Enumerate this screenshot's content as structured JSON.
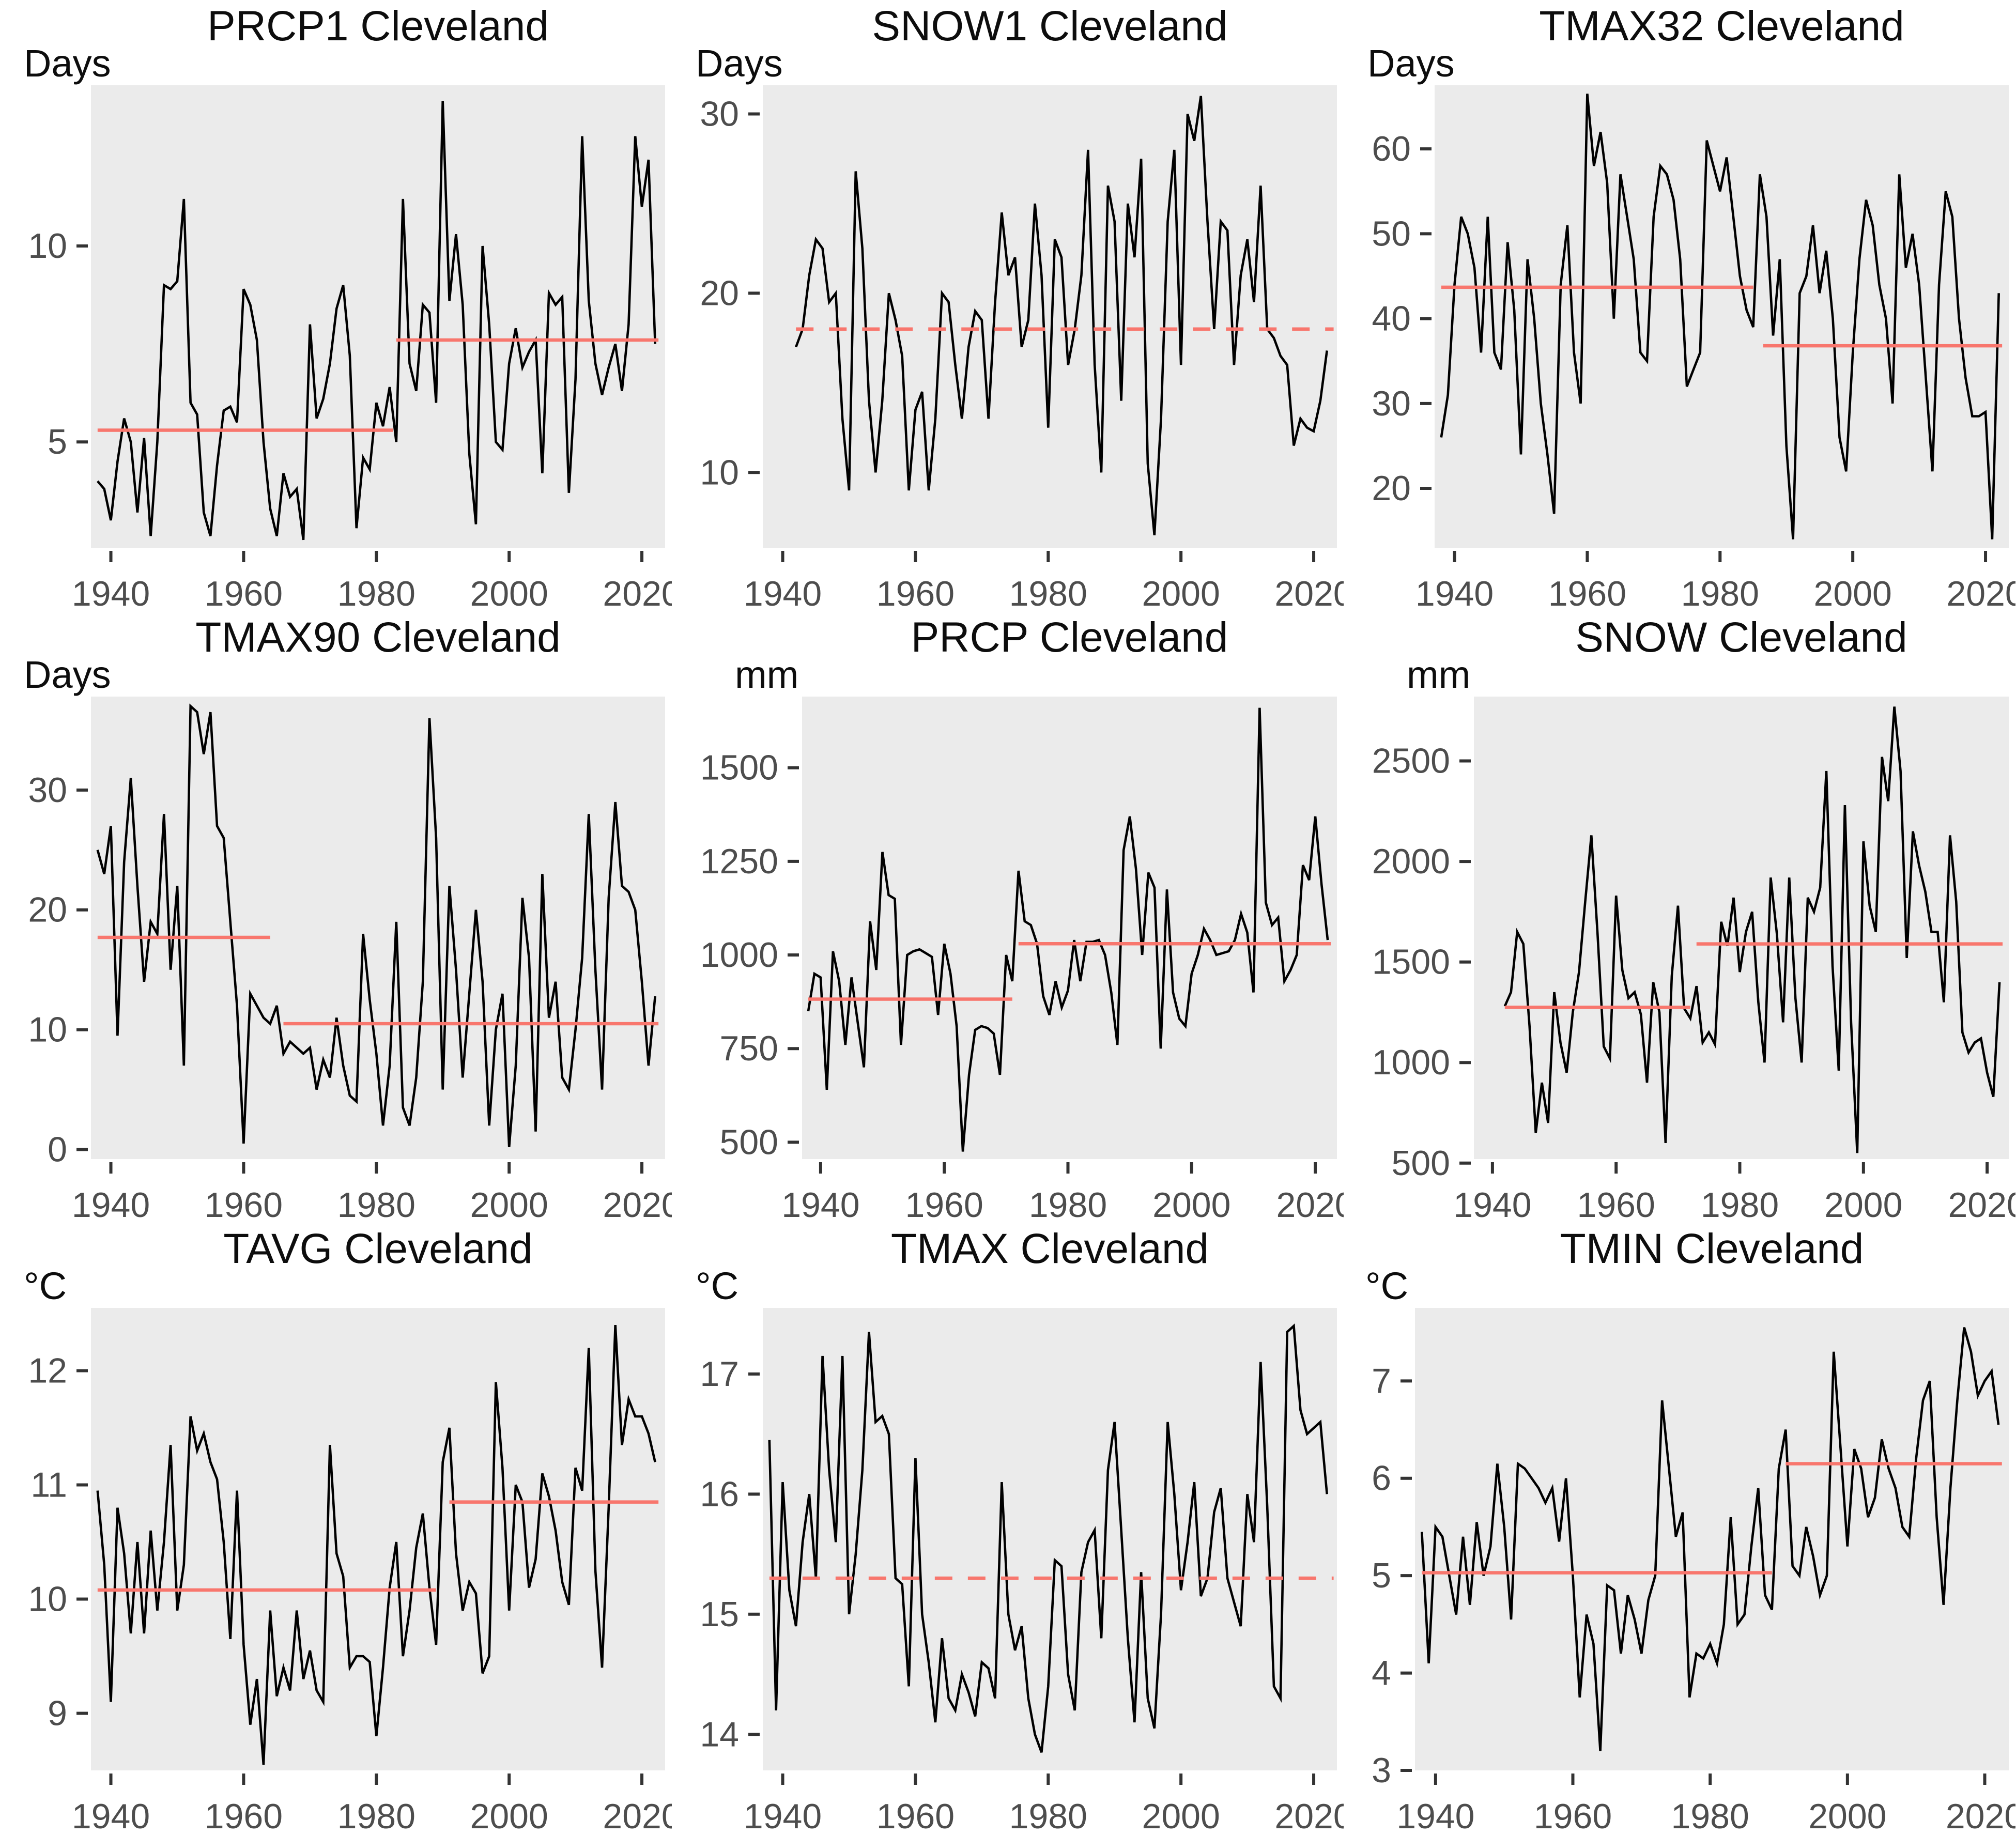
{
  "figure_title": "Cleveland climate indicator time series with changepoint mean segments",
  "style": {
    "page_bg": "#ffffff",
    "panel_bg": "#ebebeb",
    "series_color": "#000000",
    "mean_line_color": "#f8766d",
    "axis_text_color": "#4d4d4d",
    "tick_mark_color": "#333333",
    "title_color": "#0d0d0d"
  },
  "chart_data": [
    {
      "type": "line",
      "title": "PRCP1 Cleveland",
      "ylabel": "Days",
      "x_ticks": [
        1940,
        1960,
        1980,
        2000,
        2020
      ],
      "xlim": [
        1937,
        2023.5
      ],
      "y_ticks": [
        5,
        10
      ],
      "ylim": [
        2.3,
        14.1
      ],
      "grid": false,
      "legend": "none",
      "x_start": 1938,
      "x_step": 1,
      "values": [
        4.0,
        3.8,
        3.0,
        4.5,
        5.6,
        5.0,
        3.2,
        5.1,
        2.6,
        5.0,
        9.0,
        8.9,
        9.1,
        11.2,
        6.0,
        5.7,
        3.2,
        2.6,
        4.4,
        5.8,
        5.9,
        5.5,
        8.9,
        8.5,
        7.6,
        5.0,
        3.3,
        2.6,
        4.2,
        3.6,
        3.8,
        2.5,
        8.0,
        5.6,
        6.1,
        7.0,
        8.4,
        9.0,
        7.2,
        2.8,
        4.6,
        4.3,
        6.0,
        5.4,
        6.4,
        5.0,
        11.2,
        7.0,
        6.3,
        8.5,
        8.3,
        6.0,
        13.7,
        8.6,
        10.3,
        8.5,
        4.7,
        2.9,
        10.0,
        8.0,
        5.0,
        4.8,
        7.0,
        7.9,
        6.9,
        7.3,
        7.6,
        4.2,
        8.8,
        8.5,
        8.7,
        3.7,
        6.6,
        12.8,
        8.6,
        7.0,
        6.2,
        6.9,
        7.5,
        6.3,
        8.0,
        12.8,
        11.0,
        12.2,
        7.5
      ],
      "trend_segments": [
        {
          "from": 1938,
          "to": 1982.5,
          "value": 5.3,
          "style": "solid"
        },
        {
          "from": 1983,
          "to": 2022.5,
          "value": 7.6,
          "style": "solid"
        }
      ]
    },
    {
      "type": "line",
      "title": "SNOW1 Cleveland",
      "ylabel": "Days",
      "x_ticks": [
        1940,
        1960,
        1980,
        2000,
        2020
      ],
      "xlim": [
        1937,
        2023.5
      ],
      "y_ticks": [
        10,
        20,
        30
      ],
      "ylim": [
        5.8,
        31.6
      ],
      "grid": false,
      "legend": "none",
      "x_start": 1942,
      "x_step": 1,
      "values": [
        17,
        18,
        21,
        23,
        22.5,
        19.5,
        20,
        13,
        9,
        26.8,
        22.5,
        14,
        10,
        14,
        20,
        18.5,
        16.5,
        9,
        13.5,
        14.5,
        9,
        13,
        20,
        19.5,
        16,
        13,
        17,
        19,
        18.5,
        13,
        19.5,
        24.5,
        21,
        22,
        17,
        18.5,
        25,
        21,
        12.5,
        23,
        22,
        16,
        18,
        21,
        28,
        16,
        10,
        26,
        24,
        14,
        25,
        22,
        27.5,
        10.5,
        6.5,
        13,
        24,
        28,
        16,
        30,
        28.5,
        31,
        24,
        18,
        24,
        23.5,
        16,
        21,
        23,
        19.5,
        26,
        18,
        17.5,
        16.5,
        16,
        11.5,
        13,
        12.5,
        12.3,
        14,
        16.8
      ],
      "trend_segments": [
        {
          "from": 1942,
          "to": 2023,
          "value": 18.0,
          "style": "dashed"
        }
      ]
    },
    {
      "type": "line",
      "title": "TMAX32 Cleveland",
      "ylabel": "Days",
      "x_ticks": [
        1940,
        1960,
        1980,
        2000,
        2020
      ],
      "xlim": [
        1937,
        2023.5
      ],
      "y_ticks": [
        20,
        30,
        40,
        50,
        60
      ],
      "ylim": [
        13,
        67.5
      ],
      "grid": false,
      "legend": "none",
      "x_start": 1938,
      "x_step": 1,
      "values": [
        26,
        31,
        44,
        52,
        50,
        46,
        36,
        52,
        36,
        34,
        49,
        41,
        24,
        47,
        40,
        30,
        24,
        17,
        44,
        51,
        36,
        30,
        66.5,
        58,
        62,
        56,
        40,
        57,
        52,
        47,
        36,
        35,
        52,
        58,
        57,
        54,
        47,
        32,
        34,
        36,
        61,
        58,
        55,
        59,
        52,
        45,
        41,
        39,
        57,
        52,
        38,
        47,
        25,
        14,
        43,
        45,
        51,
        43,
        48,
        40,
        26,
        22,
        36,
        47,
        54,
        51,
        44,
        40,
        30,
        57,
        46,
        50,
        44,
        33,
        22,
        44,
        55,
        52,
        40,
        33,
        28.5,
        28.5,
        29,
        14,
        43
      ],
      "trend_segments": [
        {
          "from": 1938,
          "to": 1985,
          "value": 43.7,
          "style": "solid"
        },
        {
          "from": 1986.5,
          "to": 2022.5,
          "value": 36.8,
          "style": "solid"
        }
      ]
    },
    {
      "type": "line",
      "title": "TMAX90 Cleveland",
      "ylabel": "Days",
      "x_ticks": [
        1940,
        1960,
        1980,
        2000,
        2020
      ],
      "xlim": [
        1937,
        2023.5
      ],
      "y_ticks": [
        0,
        10,
        20,
        30
      ],
      "ylim": [
        -0.8,
        37.8
      ],
      "grid": false,
      "legend": "none",
      "x_start": 1938,
      "x_step": 1,
      "values": [
        25,
        23,
        27,
        9.5,
        24,
        31,
        22,
        14,
        19,
        18,
        28,
        15,
        22,
        7,
        37,
        36.5,
        33,
        36.5,
        27,
        26,
        19,
        12,
        0.5,
        13,
        12,
        11,
        10.5,
        12,
        8,
        9,
        8.5,
        8,
        8.5,
        5,
        7.5,
        6,
        11,
        7,
        4.5,
        4,
        18,
        12.5,
        8,
        2,
        7,
        19,
        3.5,
        2,
        6,
        14,
        36,
        26,
        5,
        22,
        15,
        6,
        13,
        20,
        14,
        2,
        10,
        13,
        0.2,
        7,
        21,
        16,
        1.5,
        23,
        11,
        14,
        6,
        5,
        10,
        16,
        28,
        15,
        5,
        21,
        29,
        22,
        21.5,
        20,
        14,
        7,
        12.8
      ],
      "trend_segments": [
        {
          "from": 1938,
          "to": 1964,
          "value": 17.7,
          "style": "solid"
        },
        {
          "from": 1966,
          "to": 2022.5,
          "value": 10.5,
          "style": "solid"
        }
      ]
    },
    {
      "type": "line",
      "title": "PRCP Cleveland",
      "ylabel": "mm",
      "x_ticks": [
        1940,
        1960,
        1980,
        2000,
        2020
      ],
      "xlim": [
        1937,
        2023.5
      ],
      "y_ticks": [
        500,
        750,
        1000,
        1250,
        1500
      ],
      "ylim": [
        455,
        1690
      ],
      "grid": false,
      "legend": "none",
      "x_start": 1938,
      "x_step": 1,
      "values": [
        850,
        950,
        940,
        640,
        1010,
        930,
        760,
        940,
        820,
        700,
        1090,
        960,
        1275,
        1160,
        1150,
        760,
        1000,
        1010,
        1015,
        1005,
        995,
        840,
        1030,
        950,
        810,
        475,
        680,
        800,
        810,
        805,
        790,
        680,
        1000,
        930,
        1225,
        1090,
        1080,
        1030,
        890,
        840,
        930,
        860,
        905,
        1040,
        930,
        1035,
        1035,
        1040,
        1000,
        900,
        760,
        1280,
        1370,
        1230,
        1000,
        1220,
        1180,
        750,
        1175,
        900,
        830,
        810,
        950,
        1000,
        1070,
        1040,
        1000,
        1005,
        1010,
        1040,
        1110,
        1060,
        900,
        1660,
        1140,
        1080,
        1100,
        930,
        960,
        1000,
        1240,
        1200,
        1370,
        1190,
        1040
      ],
      "trend_segments": [
        {
          "from": 1938,
          "to": 1971,
          "value": 882,
          "style": "solid"
        },
        {
          "from": 1972,
          "to": 2022.5,
          "value": 1030,
          "style": "solid"
        }
      ]
    },
    {
      "type": "line",
      "title": "SNOW Cleveland",
      "ylabel": "mm",
      "x_ticks": [
        1940,
        1960,
        1980,
        2000,
        2020
      ],
      "xlim": [
        1937,
        2023.5
      ],
      "y_ticks": [
        500,
        1000,
        1500,
        2000,
        2500
      ],
      "ylim": [
        520,
        2820
      ],
      "grid": false,
      "legend": "none",
      "x_start": 1942,
      "x_step": 1,
      "values": [
        1280,
        1350,
        1650,
        1590,
        1180,
        650,
        900,
        700,
        1350,
        1100,
        950,
        1250,
        1450,
        1800,
        2130,
        1640,
        1080,
        1020,
        1830,
        1460,
        1320,
        1350,
        1240,
        900,
        1400,
        1250,
        600,
        1430,
        1780,
        1270,
        1220,
        1380,
        1100,
        1150,
        1090,
        1700,
        1580,
        1820,
        1450,
        1650,
        1750,
        1300,
        1000,
        1920,
        1640,
        1200,
        1920,
        1320,
        1000,
        1820,
        1750,
        1870,
        2450,
        1480,
        960,
        2280,
        1200,
        550,
        2100,
        1780,
        1650,
        2520,
        2300,
        2770,
        2450,
        1520,
        2150,
        1980,
        1850,
        1650,
        1650,
        1300,
        2130,
        1800,
        1150,
        1050,
        1100,
        1120,
        950,
        830,
        1400
      ],
      "trend_segments": [
        {
          "from": 1942,
          "to": 1972,
          "value": 1275,
          "style": "solid"
        },
        {
          "from": 1973,
          "to": 2022.5,
          "value": 1590,
          "style": "solid"
        }
      ]
    },
    {
      "type": "line",
      "title": "TAVG Cleveland",
      "ylabel": "°C",
      "x_ticks": [
        1940,
        1960,
        1980,
        2000,
        2020
      ],
      "xlim": [
        1937,
        2023.5
      ],
      "y_ticks": [
        9,
        10,
        11,
        12
      ],
      "ylim": [
        8.5,
        12.55
      ],
      "grid": false,
      "legend": "none",
      "x_start": 1938,
      "x_step": 1,
      "values": [
        10.95,
        10.3,
        9.1,
        10.8,
        10.4,
        9.7,
        10.5,
        9.7,
        10.6,
        9.9,
        10.5,
        11.35,
        9.9,
        10.3,
        11.6,
        11.3,
        11.45,
        11.2,
        11.05,
        10.5,
        9.65,
        10.95,
        9.6,
        8.9,
        9.3,
        8.55,
        9.9,
        9.15,
        9.4,
        9.2,
        9.9,
        9.3,
        9.55,
        9.2,
        9.1,
        11.35,
        10.4,
        10.2,
        9.4,
        9.5,
        9.5,
        9.45,
        8.8,
        9.4,
        10.1,
        10.5,
        9.5,
        9.9,
        10.45,
        10.75,
        10.1,
        9.6,
        11.2,
        11.5,
        10.4,
        9.9,
        10.15,
        10.05,
        9.35,
        9.5,
        11.9,
        11.15,
        9.9,
        11.0,
        10.85,
        10.1,
        10.35,
        11.1,
        10.9,
        10.6,
        10.15,
        9.95,
        11.15,
        10.95,
        12.2,
        10.25,
        9.4,
        10.8,
        12.4,
        11.35,
        11.75,
        11.6,
        11.6,
        11.45,
        11.2
      ],
      "trend_segments": [
        {
          "from": 1938,
          "to": 1989,
          "value": 10.08,
          "style": "solid"
        },
        {
          "from": 1991,
          "to": 2022.5,
          "value": 10.85,
          "style": "solid"
        }
      ]
    },
    {
      "type": "line",
      "title": "TMAX Cleveland",
      "ylabel": "°C",
      "x_ticks": [
        1940,
        1960,
        1980,
        2000,
        2020
      ],
      "xlim": [
        1937,
        2023.5
      ],
      "y_ticks": [
        14,
        15,
        16,
        17
      ],
      "ylim": [
        13.7,
        17.55
      ],
      "grid": false,
      "legend": "none",
      "x_start": 1938,
      "x_step": 1,
      "values": [
        16.45,
        14.2,
        16.1,
        15.2,
        14.9,
        15.6,
        16.0,
        15.3,
        17.15,
        16.2,
        15.6,
        17.15,
        15.0,
        15.5,
        16.2,
        17.35,
        16.6,
        16.65,
        16.5,
        15.3,
        15.25,
        14.4,
        16.3,
        15.0,
        14.6,
        14.1,
        14.8,
        14.3,
        14.2,
        14.5,
        14.35,
        14.15,
        14.6,
        14.55,
        14.3,
        16.1,
        15.0,
        14.7,
        14.9,
        14.3,
        14.0,
        13.85,
        14.4,
        15.45,
        15.4,
        14.5,
        14.2,
        15.35,
        15.6,
        15.7,
        14.8,
        16.2,
        16.6,
        15.7,
        14.8,
        14.1,
        15.35,
        14.3,
        14.05,
        15.0,
        16.6,
        16.0,
        15.2,
        15.6,
        16.1,
        15.15,
        15.3,
        15.85,
        16.05,
        15.3,
        15.1,
        14.9,
        16.0,
        15.6,
        17.1,
        15.9,
        14.4,
        14.3,
        17.35,
        17.4,
        16.7,
        16.5,
        16.55,
        16.6,
        16.0
      ],
      "trend_segments": [
        {
          "from": 1938,
          "to": 2023,
          "value": 15.3,
          "style": "dashed"
        }
      ]
    },
    {
      "type": "line",
      "title": "TMIN Cleveland",
      "ylabel": "°C",
      "x_ticks": [
        1940,
        1960,
        1980,
        2000,
        2020
      ],
      "xlim": [
        1937,
        2023.5
      ],
      "y_ticks": [
        3,
        4,
        5,
        6,
        7
      ],
      "ylim": [
        3.0,
        7.75
      ],
      "grid": false,
      "legend": "none",
      "x_start": 1938,
      "x_step": 1,
      "values": [
        5.45,
        4.1,
        5.5,
        5.4,
        5.0,
        4.6,
        5.4,
        4.7,
        5.55,
        5.0,
        5.3,
        6.15,
        5.5,
        4.55,
        6.15,
        6.1,
        6.0,
        5.9,
        5.75,
        5.9,
        5.35,
        6.0,
        5.0,
        3.75,
        4.6,
        4.3,
        3.2,
        4.9,
        4.85,
        4.2,
        4.8,
        4.55,
        4.2,
        4.75,
        5.0,
        6.8,
        6.1,
        5.4,
        5.65,
        3.75,
        4.2,
        4.15,
        4.3,
        4.1,
        4.5,
        5.6,
        4.5,
        4.6,
        5.3,
        5.9,
        4.8,
        4.65,
        6.1,
        6.5,
        5.1,
        5.0,
        5.5,
        5.2,
        4.8,
        5.0,
        7.3,
        6.3,
        5.3,
        6.3,
        6.1,
        5.6,
        5.8,
        6.4,
        6.1,
        5.9,
        5.5,
        5.4,
        6.2,
        6.8,
        7.0,
        5.6,
        4.7,
        5.9,
        6.8,
        7.55,
        7.3,
        6.85,
        7.0,
        7.1,
        6.55
      ],
      "trend_segments": [
        {
          "from": 1938,
          "to": 1989,
          "value": 5.03,
          "style": "solid"
        },
        {
          "from": 1991,
          "to": 2022.5,
          "value": 6.15,
          "style": "solid"
        }
      ]
    }
  ]
}
